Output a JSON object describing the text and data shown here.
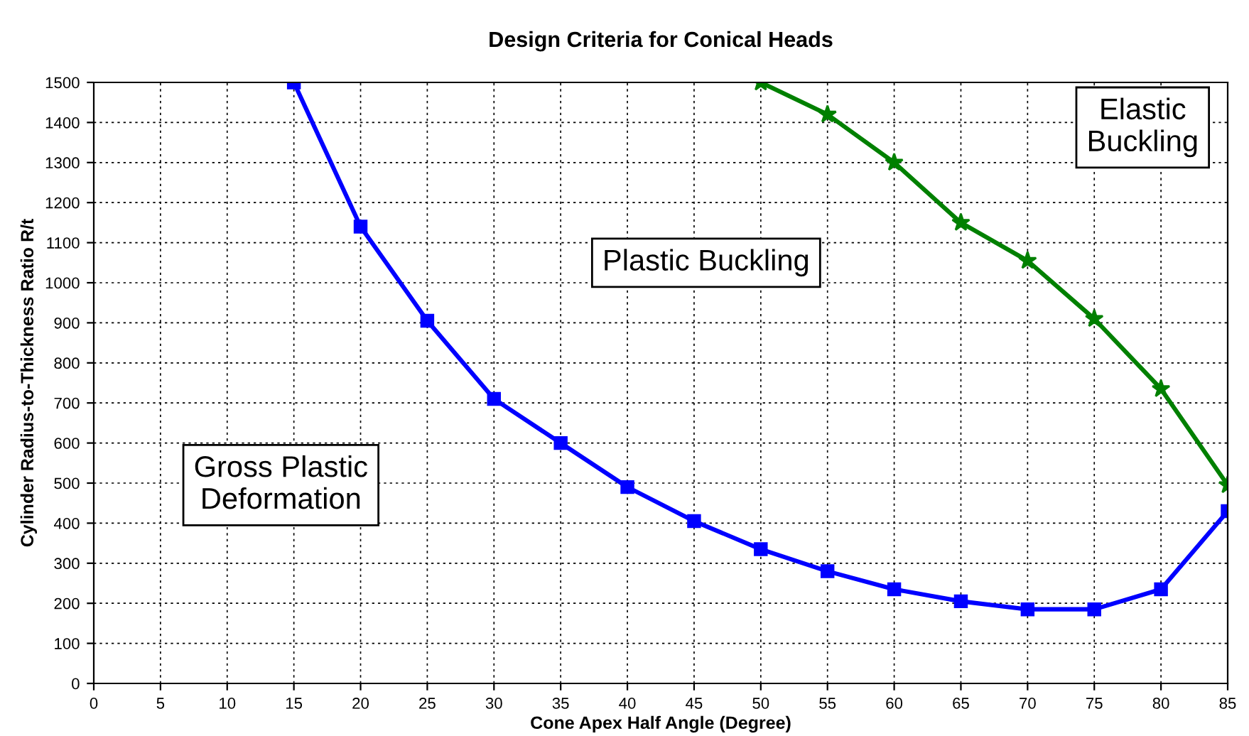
{
  "chart_data": {
    "type": "line",
    "title": "Design Criteria for Conical Heads",
    "xlabel": "Cone Apex Half Angle (Degree)",
    "ylabel": "Cylinder Radius-to-Thickness Ratio R/t",
    "series": [
      {
        "color": "#0000ff",
        "marker": "square",
        "x": [
          15,
          20,
          25,
          30,
          35,
          40,
          45,
          50,
          55,
          60,
          65,
          70,
          75,
          80,
          85
        ],
        "values": [
          1500,
          1140,
          905,
          710,
          600,
          490,
          405,
          335,
          280,
          235,
          205,
          185,
          185,
          235,
          430
        ]
      },
      {
        "color": "#008000",
        "marker": "star",
        "x": [
          50,
          55,
          60,
          65,
          70,
          75,
          80,
          85
        ],
        "values": [
          1500,
          1420,
          1300,
          1150,
          1055,
          910,
          735,
          495
        ]
      }
    ],
    "annotations": [
      "Plastic Buckling",
      "Elastic\nBuckling",
      "Gross Plastic\nDeformation"
    ],
    "xlim": [
      0,
      85
    ],
    "xticks": [
      0,
      5,
      10,
      15,
      20,
      25,
      30,
      35,
      40,
      45,
      50,
      55,
      60,
      65,
      70,
      75,
      80,
      85
    ],
    "ylim": [
      0,
      1500
    ],
    "yticks": [
      0,
      100,
      200,
      300,
      400,
      500,
      600,
      700,
      800,
      900,
      1000,
      1100,
      1200,
      1300,
      1400,
      1500
    ],
    "grid": true,
    "line_style": "solid"
  }
}
